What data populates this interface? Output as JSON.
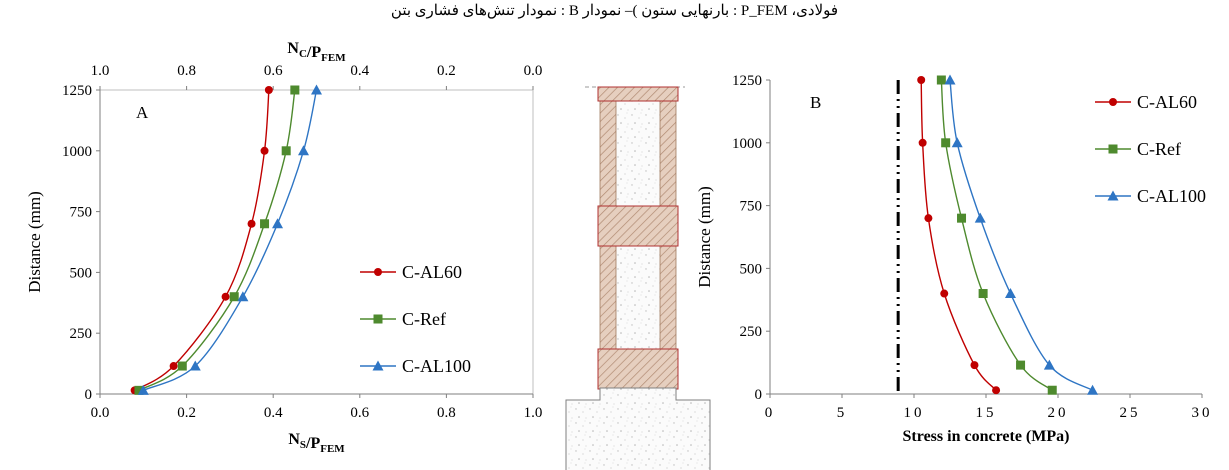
{
  "caption": "فولادی، P_FEM : بارنهایی ستون )– نمودار B : نمودار تنش‌های فشاری بتن",
  "chart_data": [
    {
      "type": "line",
      "panel_label": "A",
      "xlabel": "N_S/P_FEM",
      "x2label": "N_C/P_FEM",
      "ylabel": "Distance (mm)",
      "xlim": [
        0,
        1.0
      ],
      "x2lim": [
        1.0,
        0.0
      ],
      "ylim": [
        0,
        1250
      ],
      "x_ticks": [
        "0.0",
        "0.2",
        "0.4",
        "0.6",
        "0.8",
        "1.0"
      ],
      "x2_ticks": [
        "1.0",
        "0.8",
        "0.6",
        "0.4",
        "0.2",
        "0.0"
      ],
      "y_ticks": [
        "0",
        "250",
        "500",
        "750",
        "1000",
        "1250"
      ],
      "grid": false,
      "legend_position": "bottom-right",
      "series": [
        {
          "name": "C-AL60",
          "color": "#c00000",
          "marker": "circle",
          "x": [
            0.08,
            0.17,
            0.29,
            0.35,
            0.38,
            0.39
          ],
          "y": [
            15,
            115,
            400,
            700,
            1000,
            1250
          ]
        },
        {
          "name": "C-Ref",
          "color": "#4e8a2e",
          "marker": "square",
          "x": [
            0.09,
            0.19,
            0.31,
            0.38,
            0.43,
            0.45
          ],
          "y": [
            15,
            115,
            400,
            700,
            1000,
            1250
          ]
        },
        {
          "name": "C-AL100",
          "color": "#2e75c4",
          "marker": "triangle",
          "x": [
            0.1,
            0.22,
            0.33,
            0.41,
            0.47,
            0.5
          ],
          "y": [
            15,
            115,
            400,
            700,
            1000,
            1250
          ]
        }
      ]
    },
    {
      "type": "line",
      "panel_label": "B",
      "xlabel": "Stress in concrete (MPa)",
      "ylabel": "Distance (mm)",
      "xlim": [
        0,
        30
      ],
      "ylim": [
        0,
        1250
      ],
      "x_ticks": [
        "0",
        "5",
        "10",
        "15",
        "20",
        "25",
        "30"
      ],
      "y_ticks": [
        "0",
        "250",
        "500",
        "750",
        "1000",
        "1250"
      ],
      "grid": false,
      "legend_position": "top-right",
      "reference_line_x": 8.9,
      "series": [
        {
          "name": "C-AL60",
          "color": "#c00000",
          "marker": "circle",
          "x": [
            15.7,
            14.2,
            12.1,
            11.0,
            10.6,
            10.5
          ],
          "y": [
            15,
            115,
            400,
            700,
            1000,
            1250
          ]
        },
        {
          "name": "C-Ref",
          "color": "#4e8a2e",
          "marker": "square",
          "x": [
            19.6,
            17.4,
            14.8,
            13.3,
            12.2,
            11.9
          ],
          "y": [
            15,
            115,
            400,
            700,
            1000,
            1250
          ]
        },
        {
          "name": "C-AL100",
          "color": "#2e75c4",
          "marker": "triangle",
          "x": [
            22.4,
            19.4,
            16.7,
            14.6,
            13.0,
            12.5
          ],
          "y": [
            15,
            115,
            400,
            700,
            1000,
            1250
          ]
        }
      ]
    }
  ]
}
